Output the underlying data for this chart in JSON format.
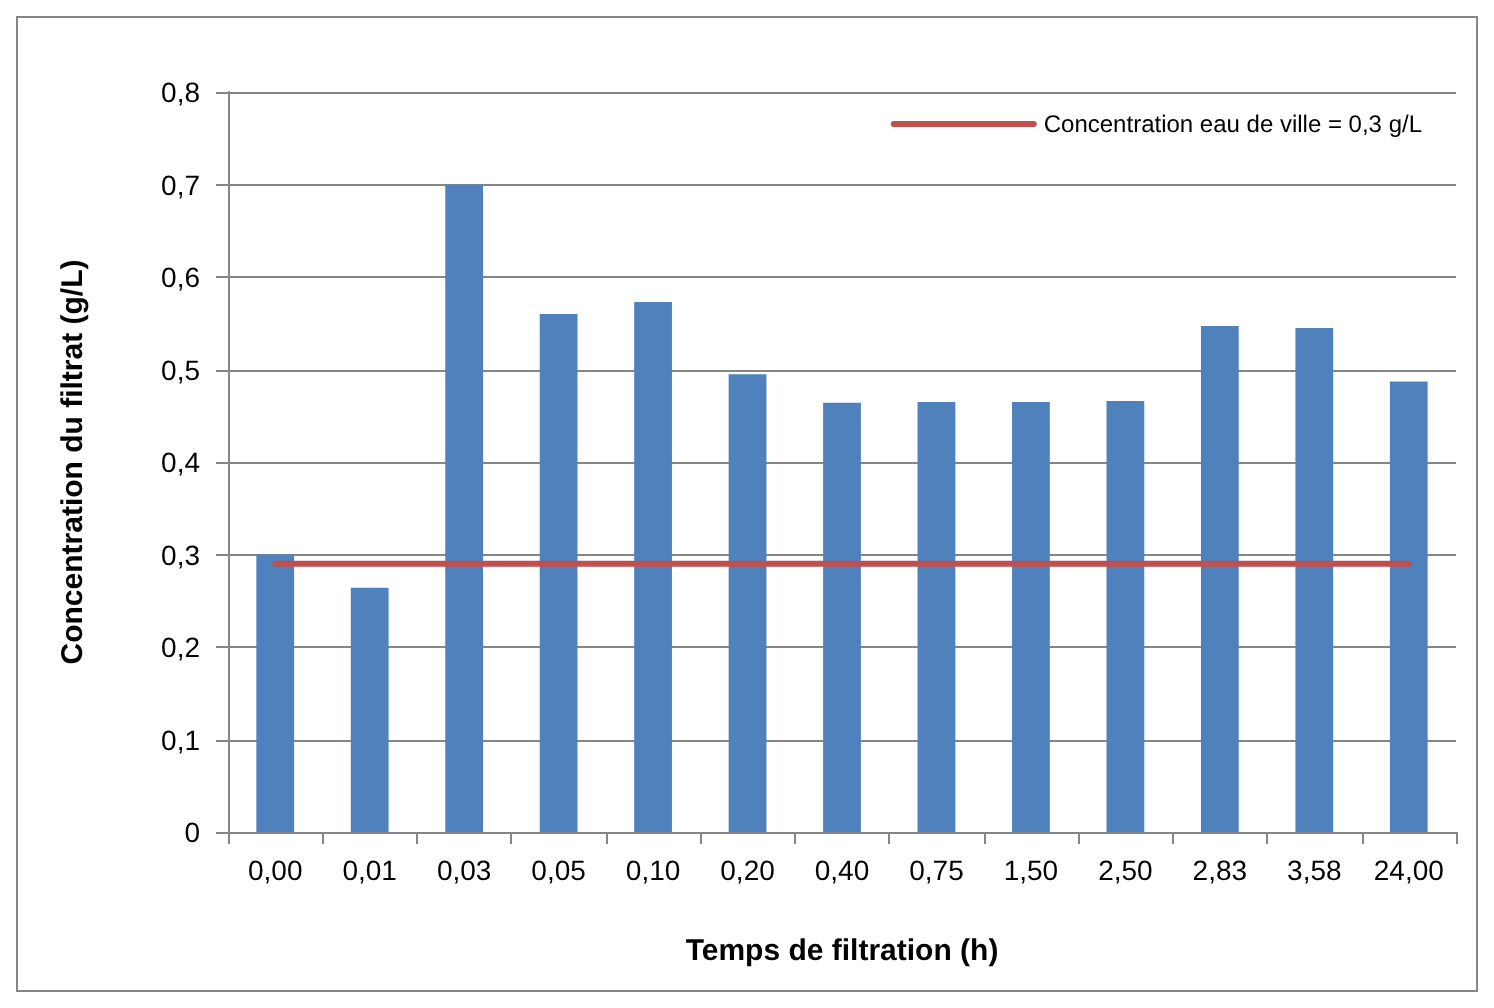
{
  "chart_data": {
    "type": "bar",
    "xlabel": "Temps de filtration (h)",
    "ylabel": "Concentration du filtrat (g/L)",
    "categories": [
      "0,00",
      "0,01",
      "0,03",
      "0,05",
      "0,10",
      "0,20",
      "0,40",
      "0,75",
      "1,50",
      "2,50",
      "2,83",
      "3,58",
      "24,00"
    ],
    "series": [
      {
        "color": "#4f81bd",
        "values": [
          0.3,
          0.264,
          0.7,
          0.56,
          0.573,
          0.495,
          0.464,
          0.465,
          0.465,
          0.466,
          0.547,
          0.545,
          0.487
        ]
      },
      {
        "type": "line",
        "name": "Concentration eau de ville = 0,3 g/L",
        "color": "#c0504d",
        "values": [
          0.29,
          0.29,
          0.29,
          0.29,
          0.29,
          0.29,
          0.29,
          0.29,
          0.29,
          0.29,
          0.29,
          0.29,
          0.29
        ]
      }
    ],
    "ylim": [
      0,
      0.8
    ],
    "yticks": [
      0,
      {
        "value": 0.1,
        "label": "0,1"
      },
      {
        "value": 0.2,
        "label": "0,2"
      },
      {
        "value": 0.3,
        "label": "0,3"
      },
      {
        "value": 0.4,
        "label": "0,4"
      },
      {
        "value": 0.5,
        "label": "0,5"
      },
      {
        "value": 0.6,
        "label": "0,6"
      },
      {
        "value": 0.7,
        "label": "0,7"
      },
      {
        "value": 0.8,
        "label": "0,8"
      }
    ],
    "grid": "y",
    "legend": "top right",
    "marker": "none",
    "line_style": "solid"
  }
}
